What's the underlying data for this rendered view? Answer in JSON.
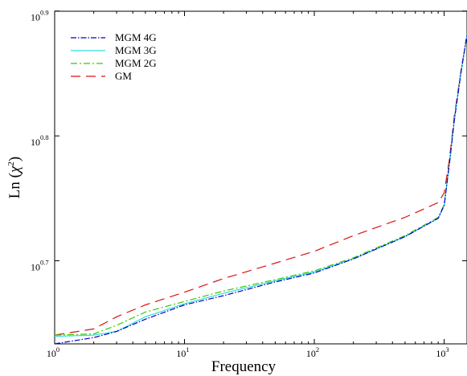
{
  "chart_data": {
    "type": "line",
    "title": "",
    "xlabel": "Frequency",
    "ylabel": "Ln (",
    "ylabel_symbol": "χ",
    "ylabel_power": "2",
    "ylabel_close": ")",
    "xscale": "log",
    "yscale": "log",
    "xlim": [
      1,
      1500
    ],
    "ylim": [
      4.3,
      7.94
    ],
    "grid": false,
    "legend_position": "top-left",
    "x_ticks": [
      {
        "value": 1,
        "base": "10",
        "exp": "0"
      },
      {
        "value": 10,
        "base": "10",
        "exp": "1"
      },
      {
        "value": 100,
        "base": "10",
        "exp": "2"
      },
      {
        "value": 1000,
        "base": "10",
        "exp": "3"
      }
    ],
    "y_ticks": [
      {
        "value": 5.0119,
        "base": "10",
        "exp": "0.7"
      },
      {
        "value": 6.3096,
        "base": "10",
        "exp": "0.8"
      },
      {
        "value": 7.9433,
        "base": "10",
        "exp": "0.9"
      }
    ],
    "series": [
      {
        "name": "MGM 4G",
        "color": "#0000cc",
        "dash": "7,2,1.5,2",
        "points": [
          [
            1,
            4.3
          ],
          [
            2,
            4.35
          ],
          [
            3,
            4.4
          ],
          [
            5,
            4.5
          ],
          [
            10,
            4.62
          ],
          [
            20,
            4.7
          ],
          [
            50,
            4.82
          ],
          [
            100,
            4.9
          ],
          [
            200,
            5.03
          ],
          [
            500,
            5.24
          ],
          [
            900,
            5.42
          ],
          [
            1000,
            5.55
          ],
          [
            1100,
            6.0
          ],
          [
            1200,
            6.5
          ],
          [
            1350,
            7.1
          ],
          [
            1500,
            7.6
          ]
        ]
      },
      {
        "name": "MGM 3G",
        "color": "#33dddd",
        "dash": "",
        "points": [
          [
            1,
            4.36
          ],
          [
            2,
            4.37
          ],
          [
            3,
            4.4
          ],
          [
            5,
            4.52
          ],
          [
            10,
            4.63
          ],
          [
            20,
            4.72
          ],
          [
            50,
            4.83
          ],
          [
            100,
            4.91
          ],
          [
            200,
            5.03
          ],
          [
            500,
            5.24
          ],
          [
            900,
            5.42
          ],
          [
            1000,
            5.55
          ],
          [
            1100,
            6.0
          ],
          [
            1200,
            6.5
          ],
          [
            1350,
            7.1
          ],
          [
            1500,
            7.6
          ]
        ]
      },
      {
        "name": "MGM 2G",
        "color": "#33cc00",
        "dash": "8,3,2,3",
        "points": [
          [
            1,
            4.37
          ],
          [
            2,
            4.38
          ],
          [
            3,
            4.45
          ],
          [
            5,
            4.56
          ],
          [
            10,
            4.65
          ],
          [
            20,
            4.74
          ],
          [
            50,
            4.84
          ],
          [
            100,
            4.92
          ],
          [
            200,
            5.04
          ],
          [
            500,
            5.25
          ],
          [
            900,
            5.43
          ],
          [
            1000,
            5.56
          ],
          [
            1100,
            6.01
          ],
          [
            1200,
            6.51
          ],
          [
            1350,
            7.1
          ],
          [
            1500,
            7.6
          ]
        ]
      },
      {
        "name": "GM",
        "color": "#dd1111",
        "dash": "12,7",
        "points": [
          [
            1,
            4.37
          ],
          [
            2,
            4.42
          ],
          [
            3,
            4.52
          ],
          [
            5,
            4.62
          ],
          [
            10,
            4.73
          ],
          [
            20,
            4.85
          ],
          [
            50,
            4.99
          ],
          [
            100,
            5.1
          ],
          [
            200,
            5.25
          ],
          [
            500,
            5.43
          ],
          [
            900,
            5.58
          ],
          [
            1000,
            5.68
          ],
          [
            1100,
            6.05
          ],
          [
            1200,
            6.55
          ],
          [
            1350,
            7.12
          ],
          [
            1500,
            7.6
          ]
        ]
      }
    ]
  }
}
